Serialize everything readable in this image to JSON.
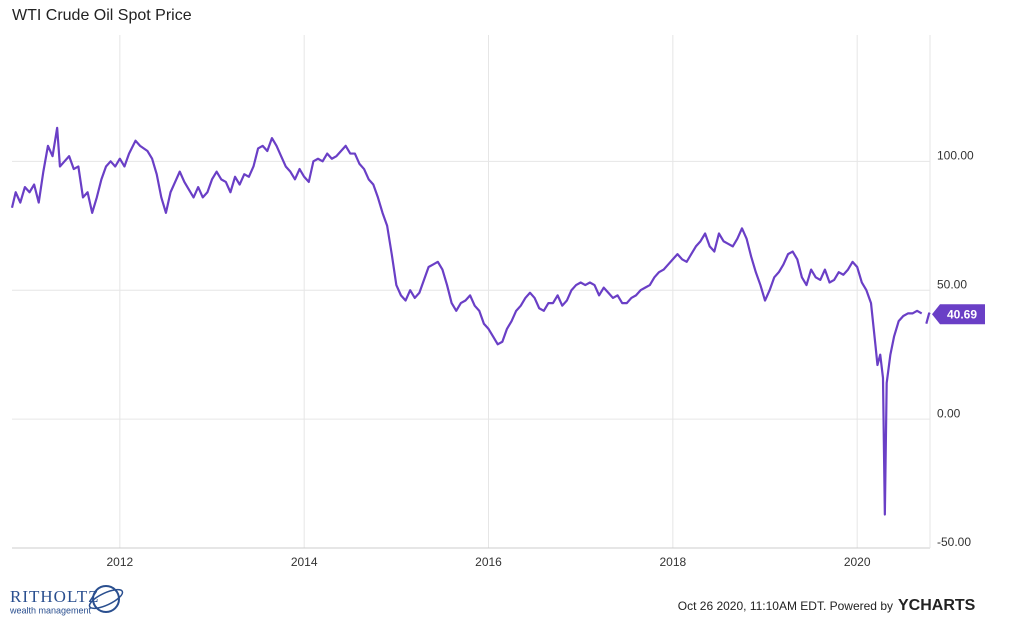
{
  "chart_data": {
    "type": "line",
    "title": "WTI Crude Oil Spot Price",
    "color": "#6a3fc6",
    "x": [
      2010.83,
      2010.87,
      2010.92,
      2010.97,
      2011.02,
      2011.07,
      2011.12,
      2011.17,
      2011.22,
      2011.27,
      2011.32,
      2011.35,
      2011.4,
      2011.45,
      2011.5,
      2011.55,
      2011.6,
      2011.65,
      2011.7,
      2011.75,
      2011.8,
      2011.85,
      2011.9,
      2011.95,
      2012,
      2012.05,
      2012.1,
      2012.17,
      2012.22,
      2012.3,
      2012.35,
      2012.4,
      2012.45,
      2012.5,
      2012.55,
      2012.6,
      2012.65,
      2012.7,
      2012.75,
      2012.8,
      2012.85,
      2012.9,
      2012.95,
      2013,
      2013.05,
      2013.1,
      2013.15,
      2013.2,
      2013.25,
      2013.3,
      2013.35,
      2013.4,
      2013.45,
      2013.5,
      2013.55,
      2013.6,
      2013.65,
      2013.7,
      2013.75,
      2013.8,
      2013.85,
      2013.9,
      2013.95,
      2014,
      2014.05,
      2014.1,
      2014.15,
      2014.2,
      2014.25,
      2014.3,
      2014.35,
      2014.4,
      2014.45,
      2014.5,
      2014.55,
      2014.6,
      2014.65,
      2014.7,
      2014.75,
      2014.8,
      2014.85,
      2014.9,
      2014.95,
      2015,
      2015.05,
      2015.1,
      2015.15,
      2015.2,
      2015.25,
      2015.3,
      2015.35,
      2015.4,
      2015.45,
      2015.5,
      2015.55,
      2015.6,
      2015.65,
      2015.7,
      2015.75,
      2015.8,
      2015.85,
      2015.9,
      2015.95,
      2016,
      2016.05,
      2016.1,
      2016.15,
      2016.2,
      2016.25,
      2016.3,
      2016.35,
      2016.4,
      2016.45,
      2016.5,
      2016.55,
      2016.6,
      2016.65,
      2016.7,
      2016.75,
      2016.8,
      2016.85,
      2016.9,
      2016.95,
      2017,
      2017.05,
      2017.1,
      2017.15,
      2017.2,
      2017.25,
      2017.3,
      2017.35,
      2017.4,
      2017.45,
      2017.5,
      2017.55,
      2017.6,
      2017.65,
      2017.7,
      2017.75,
      2017.8,
      2017.85,
      2017.9,
      2017.95,
      2018,
      2018.05,
      2018.1,
      2018.15,
      2018.2,
      2018.25,
      2018.3,
      2018.35,
      2018.4,
      2018.45,
      2018.5,
      2018.55,
      2018.6,
      2018.65,
      2018.7,
      2018.75,
      2018.8,
      2018.85,
      2018.9,
      2018.95,
      2019,
      2019.05,
      2019.1,
      2019.15,
      2019.2,
      2019.25,
      2019.3,
      2019.35,
      2019.4,
      2019.45,
      2019.5,
      2019.55,
      2019.6,
      2019.65,
      2019.7,
      2019.75,
      2019.8,
      2019.85,
      2019.9,
      2019.95,
      2020,
      2020.05,
      2020.1,
      2020.15,
      2020.2,
      2020.22,
      2020.25,
      2020.28,
      2020.3,
      2020.32,
      2020.36,
      2020.4,
      2020.45,
      2020.5,
      2020.55,
      2020.6,
      2020.65,
      2020.7,
      2020.73,
      2020.75,
      2020.78,
      2020.79
    ],
    "values": [
      82,
      88,
      84,
      90,
      88,
      91,
      84,
      96,
      106,
      102,
      113,
      98,
      100,
      102,
      97,
      98,
      86,
      88,
      80,
      86,
      93,
      98,
      100,
      98,
      101,
      98,
      103,
      108,
      106,
      104,
      101,
      95,
      86,
      80,
      88,
      92,
      96,
      92,
      89,
      86,
      90,
      86,
      88,
      93,
      96,
      93,
      92,
      88,
      94,
      91,
      95,
      94,
      98,
      105,
      106,
      104,
      109,
      106,
      102,
      98,
      96,
      93,
      97,
      94,
      92,
      100,
      101,
      100,
      103,
      101,
      102,
      104,
      106,
      103,
      103,
      99,
      97,
      93,
      91,
      86,
      80,
      75,
      64,
      52,
      48,
      46,
      50,
      47,
      49,
      54,
      59,
      60,
      61,
      58,
      52,
      45,
      42,
      45,
      46,
      48,
      44,
      42,
      37,
      35,
      32,
      29,
      30,
      35,
      38,
      42,
      44,
      47,
      49,
      47,
      43,
      42,
      45,
      45,
      48,
      44,
      46,
      50,
      52,
      53,
      52,
      53,
      52,
      48,
      51,
      49,
      47,
      48,
      45,
      45,
      47,
      48,
      50,
      51,
      52,
      55,
      57,
      58,
      60,
      62,
      64,
      62,
      61,
      64,
      67,
      69,
      72,
      67,
      65,
      72,
      69,
      68,
      67,
      70,
      74,
      70,
      63,
      57,
      52,
      46,
      50,
      55,
      57,
      60,
      64,
      65,
      62,
      55,
      52,
      58,
      55,
      54,
      58,
      53,
      54,
      57,
      56,
      58,
      61,
      59,
      53,
      50,
      45,
      28,
      21,
      25,
      16,
      -37,
      14,
      25,
      32,
      38,
      40,
      41,
      41,
      42,
      41,
      null,
      37,
      41,
      40.69
    ],
    "last_value": 40.69,
    "xlim": [
      2010.83,
      2020.79
    ],
    "ylim": [
      -50,
      149
    ],
    "xticks": [
      2012,
      2014,
      2016,
      2018,
      2020
    ],
    "yticks": [
      {
        "value": -50,
        "label": "-50.00"
      },
      {
        "value": 0,
        "label": "0.00"
      },
      {
        "value": 50,
        "label": "50.00"
      },
      {
        "value": 100,
        "label": "100.00"
      }
    ],
    "grid": true
  },
  "footer": {
    "timestamp": "Oct 26 2020, 11:10AM EDT. Powered by",
    "brand": "YCHARTS"
  },
  "logo": {
    "name": "RITHOLTZ",
    "tagline": "wealth management"
  }
}
